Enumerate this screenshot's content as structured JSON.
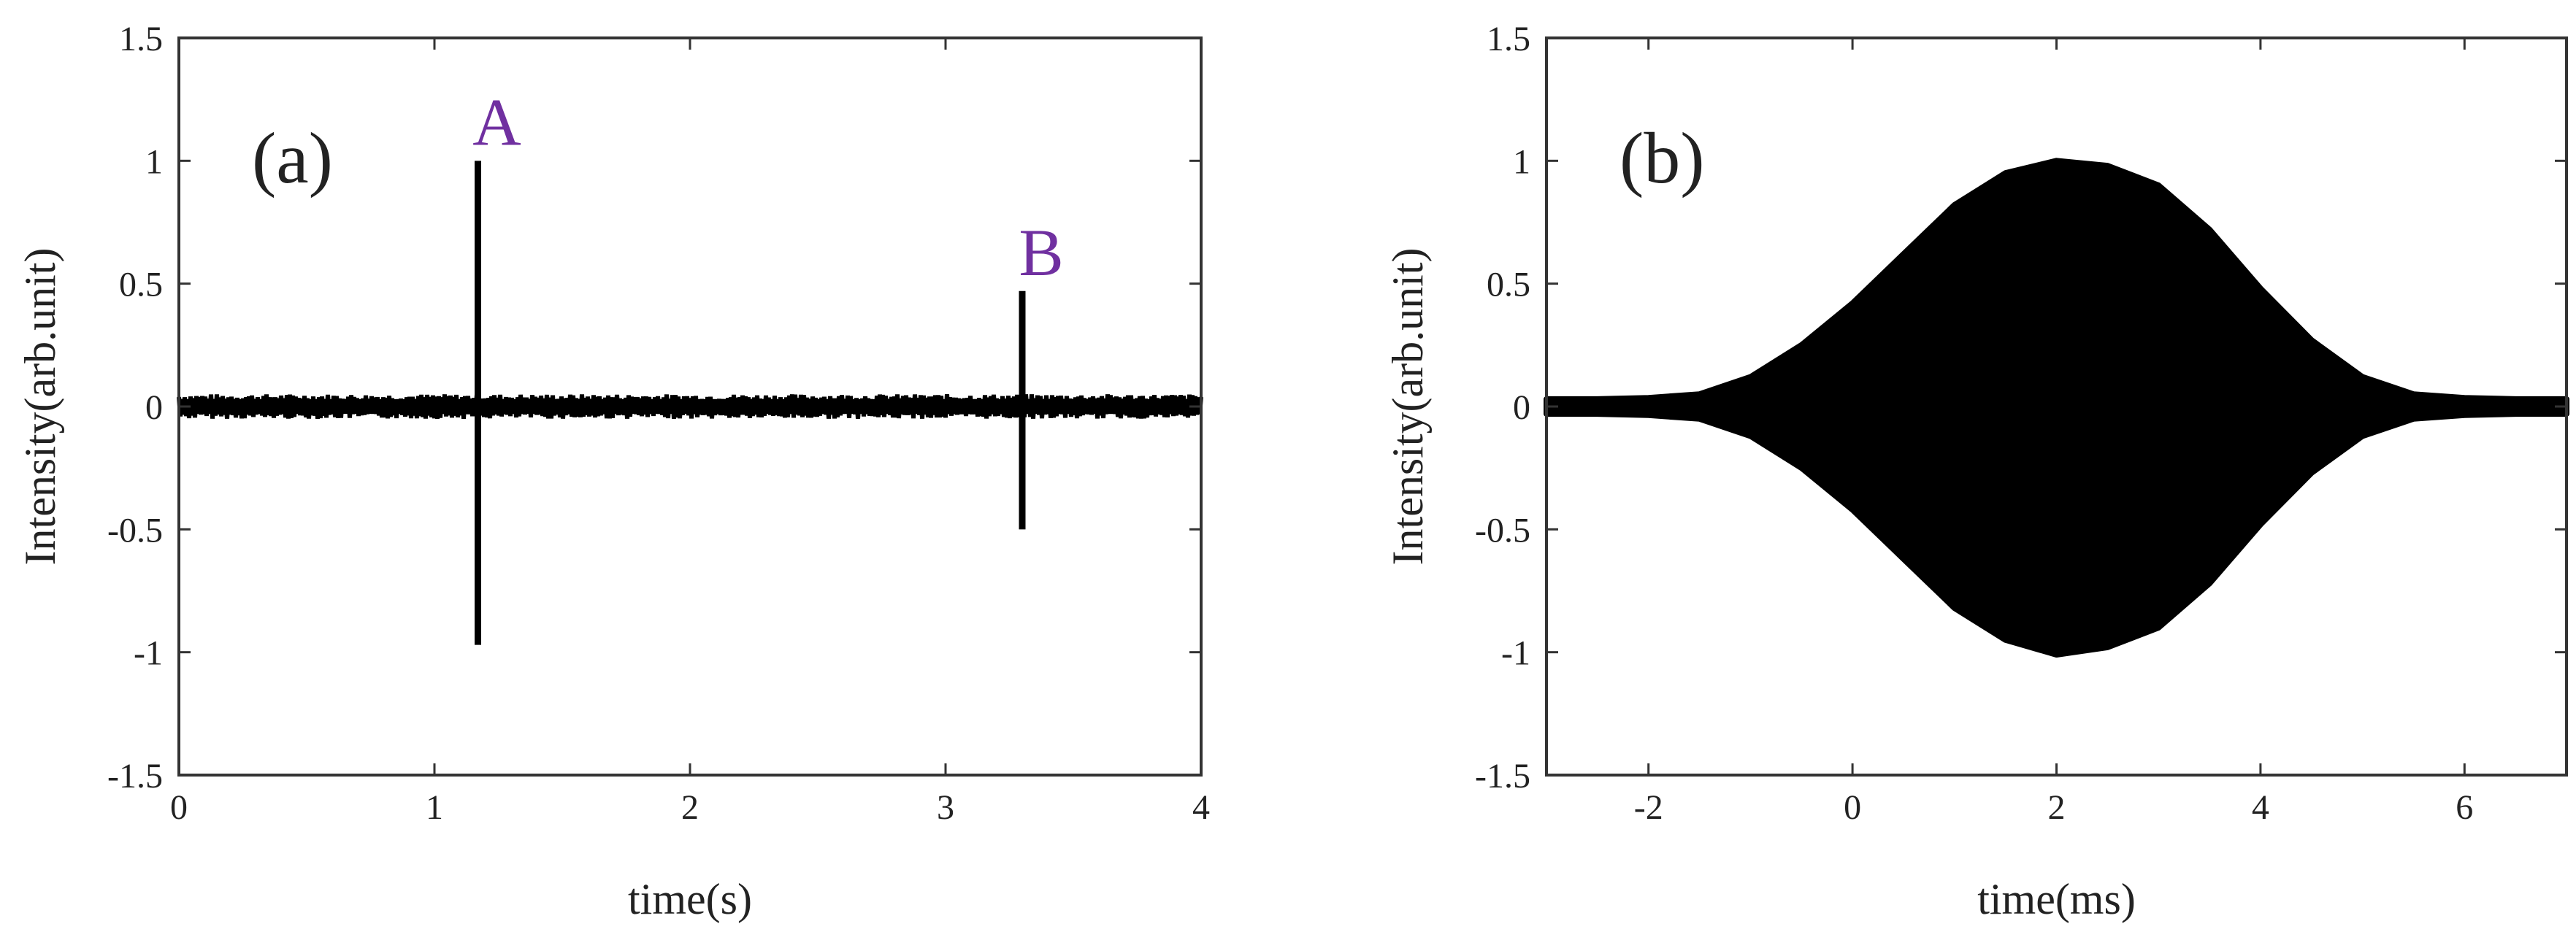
{
  "chart_data": [
    {
      "type": "line",
      "panel_label": "(a)",
      "xlabel": "time(s)",
      "ylabel": "Intensity(arb.unit)",
      "xlim": [
        0,
        4
      ],
      "ylim": [
        -1.5,
        1.5
      ],
      "x_ticks": [
        0,
        1,
        2,
        3,
        4
      ],
      "y_ticks": [
        -1.5,
        -1,
        -0.5,
        0,
        0.5,
        1,
        1.5
      ],
      "y_tick_labels": [
        "-1.5",
        "-1",
        "-0.5",
        "0",
        "0.5",
        "1",
        "1.5"
      ],
      "grid": false,
      "line_color": "#000000",
      "annotation_color": "#7030a0",
      "noise_band": [
        -0.05,
        0.05
      ],
      "spikes": [
        {
          "label": "A",
          "x": 1.17,
          "ymax": 1.0,
          "ymin": -0.97
        },
        {
          "label": "B",
          "x": 3.3,
          "ymax": 0.47,
          "ymin": -0.5
        }
      ]
    },
    {
      "type": "area",
      "panel_label": "(b)",
      "xlabel": "time(ms)",
      "ylabel": "Intensity(arb.unit)",
      "xlim": [
        -3,
        7
      ],
      "ylim": [
        -1.5,
        1.5
      ],
      "x_ticks": [
        -2,
        0,
        2,
        4,
        6
      ],
      "y_ticks": [
        -1.5,
        -1,
        -0.5,
        0,
        0.5,
        1,
        1.5
      ],
      "y_tick_labels": [
        "-1.5",
        "-1",
        "-0.5",
        "0",
        "0.5",
        "1",
        "1.5"
      ],
      "grid": false,
      "fill_color": "#000000",
      "envelope": {
        "x": [
          -3,
          -2.5,
          -2,
          -1.5,
          -1,
          -0.5,
          0,
          0.5,
          1,
          1.5,
          2,
          2.5,
          3,
          3.5,
          4,
          4.5,
          5,
          5.5,
          6,
          6.5,
          7
        ],
        "upper": [
          0.03,
          0.03,
          0.035,
          0.05,
          0.12,
          0.25,
          0.42,
          0.62,
          0.82,
          0.95,
          1.0,
          0.98,
          0.9,
          0.72,
          0.48,
          0.27,
          0.12,
          0.05,
          0.035,
          0.03,
          0.03
        ],
        "lower": [
          -0.03,
          -0.03,
          -0.035,
          -0.05,
          -0.12,
          -0.25,
          -0.42,
          -0.62,
          -0.82,
          -0.95,
          -1.01,
          -0.98,
          -0.9,
          -0.72,
          -0.48,
          -0.27,
          -0.12,
          -0.05,
          -0.035,
          -0.03,
          -0.03
        ]
      }
    }
  ]
}
